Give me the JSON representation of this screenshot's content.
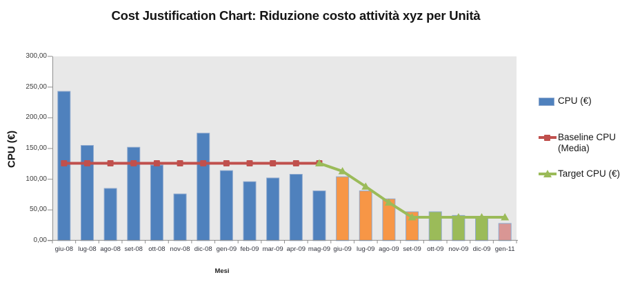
{
  "chart_data": {
    "type": "bar",
    "title": "Cost Justification Chart: Riduzione costo attività xyz per Unità",
    "xlabel": "Mesi",
    "ylabel": "CPU (€)",
    "ylim": [
      0,
      300
    ],
    "yticks": [
      0,
      50,
      100,
      150,
      200,
      250,
      300
    ],
    "ytick_labels": [
      "0,00",
      "50,00",
      "100,00",
      "150,00",
      "200,00",
      "250,00",
      "300,00"
    ],
    "grid": false,
    "plot_bg": "#E8E8E8",
    "axis_color": "#8E8E8E",
    "categories": [
      "giu-08",
      "lug-08",
      "ago-08",
      "set-08",
      "ott-08",
      "nov-08",
      "dic-08",
      "gen-09",
      "feb-09",
      "mar-09",
      "apr-09",
      "mag-09",
      "giu-09",
      "lug-09",
      "ago-09",
      "set-09",
      "ott-09",
      "nov-09",
      "dic-09",
      "gen-11"
    ],
    "series": [
      {
        "name": "CPU (€)",
        "type": "bar",
        "values": [
          243,
          155,
          85,
          152,
          123,
          76,
          175,
          114,
          96,
          102,
          108,
          81,
          104,
          81,
          68,
          47,
          47,
          41,
          38,
          28
        ],
        "colors": [
          "#4F81BD",
          "#4F81BD",
          "#4F81BD",
          "#4F81BD",
          "#4F81BD",
          "#4F81BD",
          "#4F81BD",
          "#4F81BD",
          "#4F81BD",
          "#4F81BD",
          "#4F81BD",
          "#4F81BD",
          "#F79646",
          "#F79646",
          "#F79646",
          "#F79646",
          "#9BBB59",
          "#9BBB59",
          "#9BBB59",
          "#D99694"
        ],
        "border_color": "#8FA9CE"
      },
      {
        "name": "Baseline CPU (Media)",
        "type": "line",
        "marker": "square",
        "color": "#C0504D",
        "values": [
          126,
          126,
          126,
          126,
          126,
          126,
          126,
          126,
          126,
          126,
          126,
          126,
          null,
          null,
          null,
          null,
          null,
          null,
          null,
          null
        ]
      },
      {
        "name": "Target  CPU (€)",
        "type": "line",
        "marker": "triangle",
        "color": "#9BBB59",
        "values": [
          null,
          null,
          null,
          null,
          null,
          null,
          null,
          null,
          null,
          null,
          null,
          126,
          113,
          88,
          62,
          38,
          38,
          38,
          38,
          38
        ]
      }
    ],
    "legend": {
      "position": "right",
      "items": [
        {
          "label": "CPU (€)",
          "swatch": "bar",
          "color": "#4F81BD"
        },
        {
          "label": "Baseline CPU (Media)",
          "swatch": "line-square",
          "color": "#C0504D"
        },
        {
          "label": "Target  CPU (€)",
          "swatch": "line-triangle",
          "color": "#9BBB59"
        }
      ]
    }
  }
}
